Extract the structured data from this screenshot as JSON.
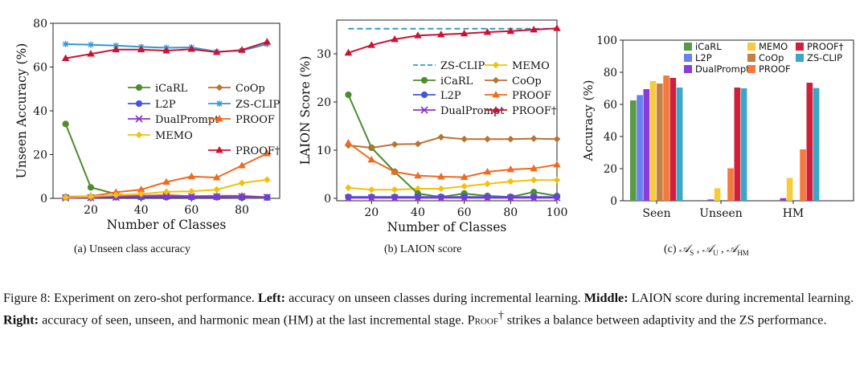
{
  "chart_data": [
    {
      "id": "a",
      "type": "line",
      "xlabel": "Number of Classes",
      "ylabel": "Unseen Accuracy (%)",
      "xlim": [
        5,
        95
      ],
      "ylim": [
        0,
        80
      ],
      "xticks": [
        20,
        40,
        60,
        80
      ],
      "yticks": [
        0,
        20,
        40,
        60,
        80
      ],
      "legend_position": "center",
      "x": [
        10,
        20,
        30,
        40,
        50,
        60,
        70,
        80,
        90
      ],
      "series": [
        {
          "name": "iCaRL",
          "color": "#4e8c2e",
          "marker": "circle",
          "values": [
            34,
            5,
            2,
            1,
            0.8,
            0.5,
            0.5,
            0.3,
            0.3
          ]
        },
        {
          "name": "CoOp",
          "color": "#b87333",
          "marker": "diamond",
          "values": [
            0.8,
            0.8,
            1.0,
            1.2,
            1.5,
            1.0,
            1.2,
            1.2,
            0.5
          ]
        },
        {
          "name": "L2P",
          "color": "#4455dd",
          "marker": "circle",
          "values": [
            0.5,
            0.5,
            0.5,
            0.5,
            0.5,
            0.5,
            0.5,
            0.5,
            0.5
          ]
        },
        {
          "name": "ZS-CLIP",
          "color": "#3399cc",
          "marker": "star",
          "values": [
            70.5,
            70.2,
            69.8,
            69.2,
            68.8,
            69.0,
            67.0,
            67.5,
            70.5
          ]
        },
        {
          "name": "DualPrompt",
          "color": "#8833cc",
          "marker": "x",
          "values": [
            0.2,
            0.3,
            0.5,
            0.8,
            1.0,
            0.8,
            0.8,
            0.8,
            0.5
          ]
        },
        {
          "name": "PROOF",
          "color": "#f06a1e",
          "marker": "triangle",
          "values": [
            0.5,
            1.0,
            2.8,
            4.0,
            7.5,
            10.0,
            9.5,
            15.0,
            20.5
          ]
        },
        {
          "name": "MEMO",
          "color": "#f2c10e",
          "marker": "diamond",
          "values": [
            0.5,
            0.8,
            1.5,
            2.0,
            3.0,
            3.2,
            4.0,
            7.0,
            8.5
          ]
        },
        {
          "name": "PROOF†",
          "color": "#cc1133",
          "marker": "triangle",
          "values": [
            64,
            66,
            68,
            68,
            67.5,
            68.2,
            66.8,
            67.8,
            71.5
          ]
        }
      ]
    },
    {
      "id": "b",
      "type": "line",
      "xlabel": "Number of Classes",
      "ylabel": "LAION Score (%)",
      "xlim": [
        5,
        100
      ],
      "ylim": [
        -0.5,
        37
      ],
      "xticks": [
        20,
        40,
        60,
        80,
        100
      ],
      "yticks": [
        0,
        10,
        20,
        30
      ],
      "legend_position": "center",
      "x": [
        10,
        20,
        30,
        40,
        50,
        60,
        70,
        80,
        90,
        100
      ],
      "series": [
        {
          "name": "ZS-CLIP",
          "color": "#3399cc",
          "marker": "none",
          "dashed": true,
          "values": [
            35.2,
            35.2,
            35.2,
            35.2,
            35.2,
            35.2,
            35.2,
            35.2,
            35.2,
            35.2
          ]
        },
        {
          "name": "MEMO",
          "color": "#f2c10e",
          "marker": "diamond",
          "values": [
            2.2,
            1.8,
            1.8,
            2.0,
            2.0,
            2.5,
            3.0,
            3.5,
            3.8,
            3.8
          ]
        },
        {
          "name": "iCaRL",
          "color": "#4e8c2e",
          "marker": "circle",
          "values": [
            21.5,
            10.5,
            5.5,
            1.0,
            0.3,
            1.0,
            0.5,
            0.3,
            1.3,
            0.5
          ]
        },
        {
          "name": "CoOp",
          "color": "#b87333",
          "marker": "diamond",
          "values": [
            11.0,
            10.5,
            11.2,
            11.3,
            12.7,
            12.3,
            12.3,
            12.3,
            12.4,
            12.3
          ]
        },
        {
          "name": "L2P",
          "color": "#4455dd",
          "marker": "circle",
          "values": [
            0.3,
            0.3,
            0.3,
            0.3,
            0.3,
            0.3,
            0.3,
            0.3,
            0.3,
            0.3
          ]
        },
        {
          "name": "PROOF",
          "color": "#f06a1e",
          "marker": "triangle",
          "values": [
            11.5,
            8.0,
            5.5,
            4.7,
            4.5,
            4.4,
            5.5,
            6.0,
            6.2,
            7.0
          ]
        },
        {
          "name": "DualPrompt",
          "color": "#8833cc",
          "marker": "x",
          "values": [
            0.1,
            0.1,
            0.1,
            0.1,
            0.1,
            0.1,
            0.1,
            0.1,
            0.1,
            0.1
          ]
        },
        {
          "name": "PROOF†",
          "color": "#cc1133",
          "marker": "triangle",
          "values": [
            30.2,
            31.8,
            33.0,
            33.8,
            34.0,
            34.2,
            34.5,
            34.7,
            35.0,
            35.3
          ]
        }
      ]
    },
    {
      "id": "c",
      "type": "bar",
      "ylabel": "Accuracy (%)",
      "ylim": [
        0,
        100
      ],
      "yticks": [
        0,
        20,
        40,
        60,
        80,
        100
      ],
      "categories": [
        "Seen",
        "Unseen",
        "HM"
      ],
      "legend_position": "top",
      "series": [
        {
          "name": "iCaRL",
          "color": "#5a9a46",
          "values": [
            62.5,
            0.0,
            0.0
          ]
        },
        {
          "name": "L2P",
          "color": "#6a7ff0",
          "values": [
            65.8,
            0.0,
            0.0
          ]
        },
        {
          "name": "DualPrompt",
          "color": "#8c3bd6",
          "values": [
            69.5,
            0.8,
            1.6
          ]
        },
        {
          "name": "MEMO",
          "color": "#f7cb3a",
          "values": [
            74.5,
            7.8,
            14.2
          ]
        },
        {
          "name": "CoOp",
          "color": "#c77e45",
          "values": [
            73.0,
            0.0,
            0.0
          ]
        },
        {
          "name": "PROOF",
          "color": "#f27a3c",
          "values": [
            78.0,
            20.2,
            32.0
          ]
        },
        {
          "name": "PROOF†",
          "color": "#d11f3b",
          "values": [
            76.5,
            70.5,
            73.5
          ]
        },
        {
          "name": "ZS-CLIP",
          "color": "#3aa6c9",
          "values": [
            70.5,
            70.0,
            70.2
          ]
        }
      ],
      "legend_order": [
        "iCaRL",
        "MEMO",
        "PROOF†",
        "L2P",
        "CoOp",
        "ZS-CLIP",
        "DualPrompt",
        "PROOF"
      ]
    }
  ],
  "subcaptions": {
    "a": "(a)  Unseen class accuracy",
    "b": "(b)  LAION score",
    "c_prefix": "(c)",
    "c_seen_symbol": "𝒜",
    "c_seen_sub": "S",
    "c_unseen_symbol": "𝒜",
    "c_unseen_sub": "U",
    "c_hm_symbol": "𝒜",
    "c_hm_sub": "HM"
  },
  "caption": {
    "figure_label": "Figure 8:",
    "intro": "Experiment on zero-shot performance.",
    "left_label": "Left:",
    "left_text": "accuracy on unseen classes during incremental learning.",
    "middle_label": "Middle:",
    "middle_text": "LAION score during incremental learning.",
    "right_label": "Right:",
    "right_text": "accuracy of seen, unseen, and harmonic mean (HM) at the last incremental stage.",
    "method": "Proof",
    "method_mark": "†",
    "tail": "strikes a balance between adaptivity and the ZS performance."
  }
}
